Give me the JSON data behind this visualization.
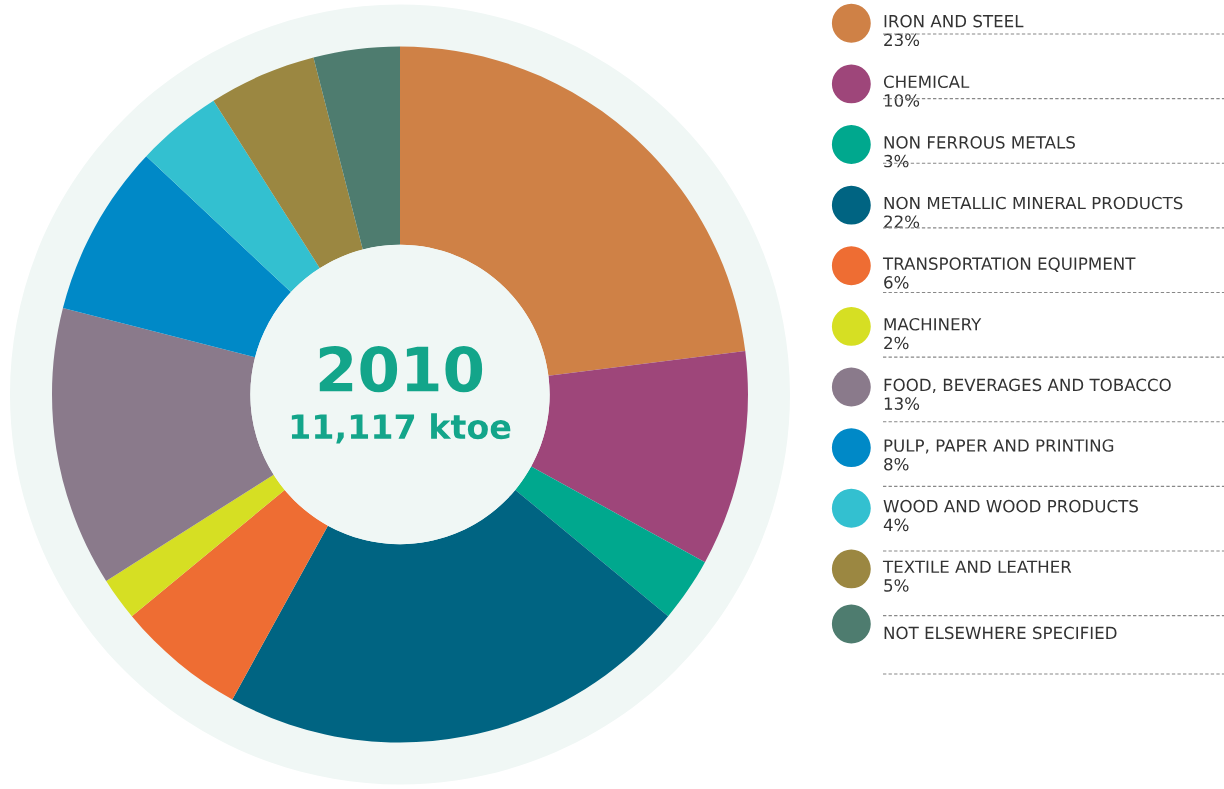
{
  "chart_data": {
    "type": "donut",
    "title": "2010",
    "subtitle": "11,117 ktoe",
    "categories": [
      "IRON AND STEEL",
      "CHEMICAL",
      "NON FERROUS METALS",
      "NON METALLIC MINERAL PRODUCTS",
      "TRANSPORTATION EQUIPMENT",
      "MACHINERY",
      "FOOD, BEVERAGES AND TOBACCO",
      "PULP, PAPER AND PRINTING",
      "WOOD AND WOOD PRODUCTS",
      "TEXTILE AND LEATHER",
      "NOT ELSEWHERE SPECIFIED"
    ],
    "values": [
      23,
      10,
      3,
      22,
      6,
      2,
      13,
      8,
      4,
      5,
      4
    ],
    "value_labels": [
      "23%",
      "10%",
      "3%",
      "22%",
      "6%",
      "2%",
      "13%",
      "8%",
      "4%",
      "5%",
      null
    ],
    "colors": [
      "#cf8146",
      "#9e467a",
      "#00a88e",
      "#006482",
      "#ee6d33",
      "#d6df23",
      "#8a7a8b",
      "#0089c7",
      "#33c0d0",
      "#9b8741",
      "#4e7c6f"
    ],
    "legend": "right"
  }
}
